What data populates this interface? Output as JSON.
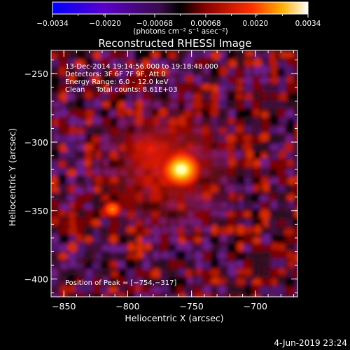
{
  "chart_data": {
    "type": "heatmap",
    "title": "Reconstructed RHESSI Image",
    "xlabel": "Heliocentric X (arcsec)",
    "ylabel": "Heliocentric Y (arcsec)",
    "xlim": [
      -860,
      -667
    ],
    "ylim": [
      -413,
      -233
    ],
    "x_ticks": [
      -850,
      -800,
      -750,
      -700
    ],
    "x_tick_labels": [
      "−850",
      "−800",
      "−750",
      "−700"
    ],
    "y_ticks": [
      -250,
      -300,
      -350,
      -400
    ],
    "y_tick_labels": [
      "−250",
      "−300",
      "−350",
      "−400"
    ],
    "colorbar": {
      "range": [
        -0.0034,
        0.0034
      ],
      "ticks": [
        -0.0034,
        -0.002,
        -0.00068,
        0.00068,
        0.002,
        0.0034
      ],
      "tick_labels": [
        "−0.0034",
        "−0.0020",
        "−0.00068",
        "0.00068",
        "0.0020",
        "0.0034"
      ],
      "unit_label": "(photons cm⁻² s⁻¹ asec⁻²)"
    },
    "annotations": [
      "13-Dec-2014 19:14:56.000 to 19:18:48.000",
      "Detectors: 3F 6F 7F 9F, Att 0",
      "Energy Range: 6.0 – 12.0 keV",
      "Clean     Total counts: 8.61E+03"
    ],
    "peak_label": "Position of Peak = [−754,−317]",
    "sources": [
      {
        "x": -758,
        "y": -320,
        "peak": 1.0
      },
      {
        "x": -812,
        "y": -349,
        "peak": 0.5
      },
      {
        "x": -782,
        "y": -305,
        "peak": 0.35
      }
    ],
    "footer_date": "4-Jun-2019 23:24",
    "colors": {
      "background": "#000000",
      "text": "#ffffff",
      "colormap": [
        "#0000ff",
        "#5a00cc",
        "#3a0b4a",
        "#000000",
        "#6e0000",
        "#e02000",
        "#ff9000",
        "#ffffff"
      ]
    }
  }
}
